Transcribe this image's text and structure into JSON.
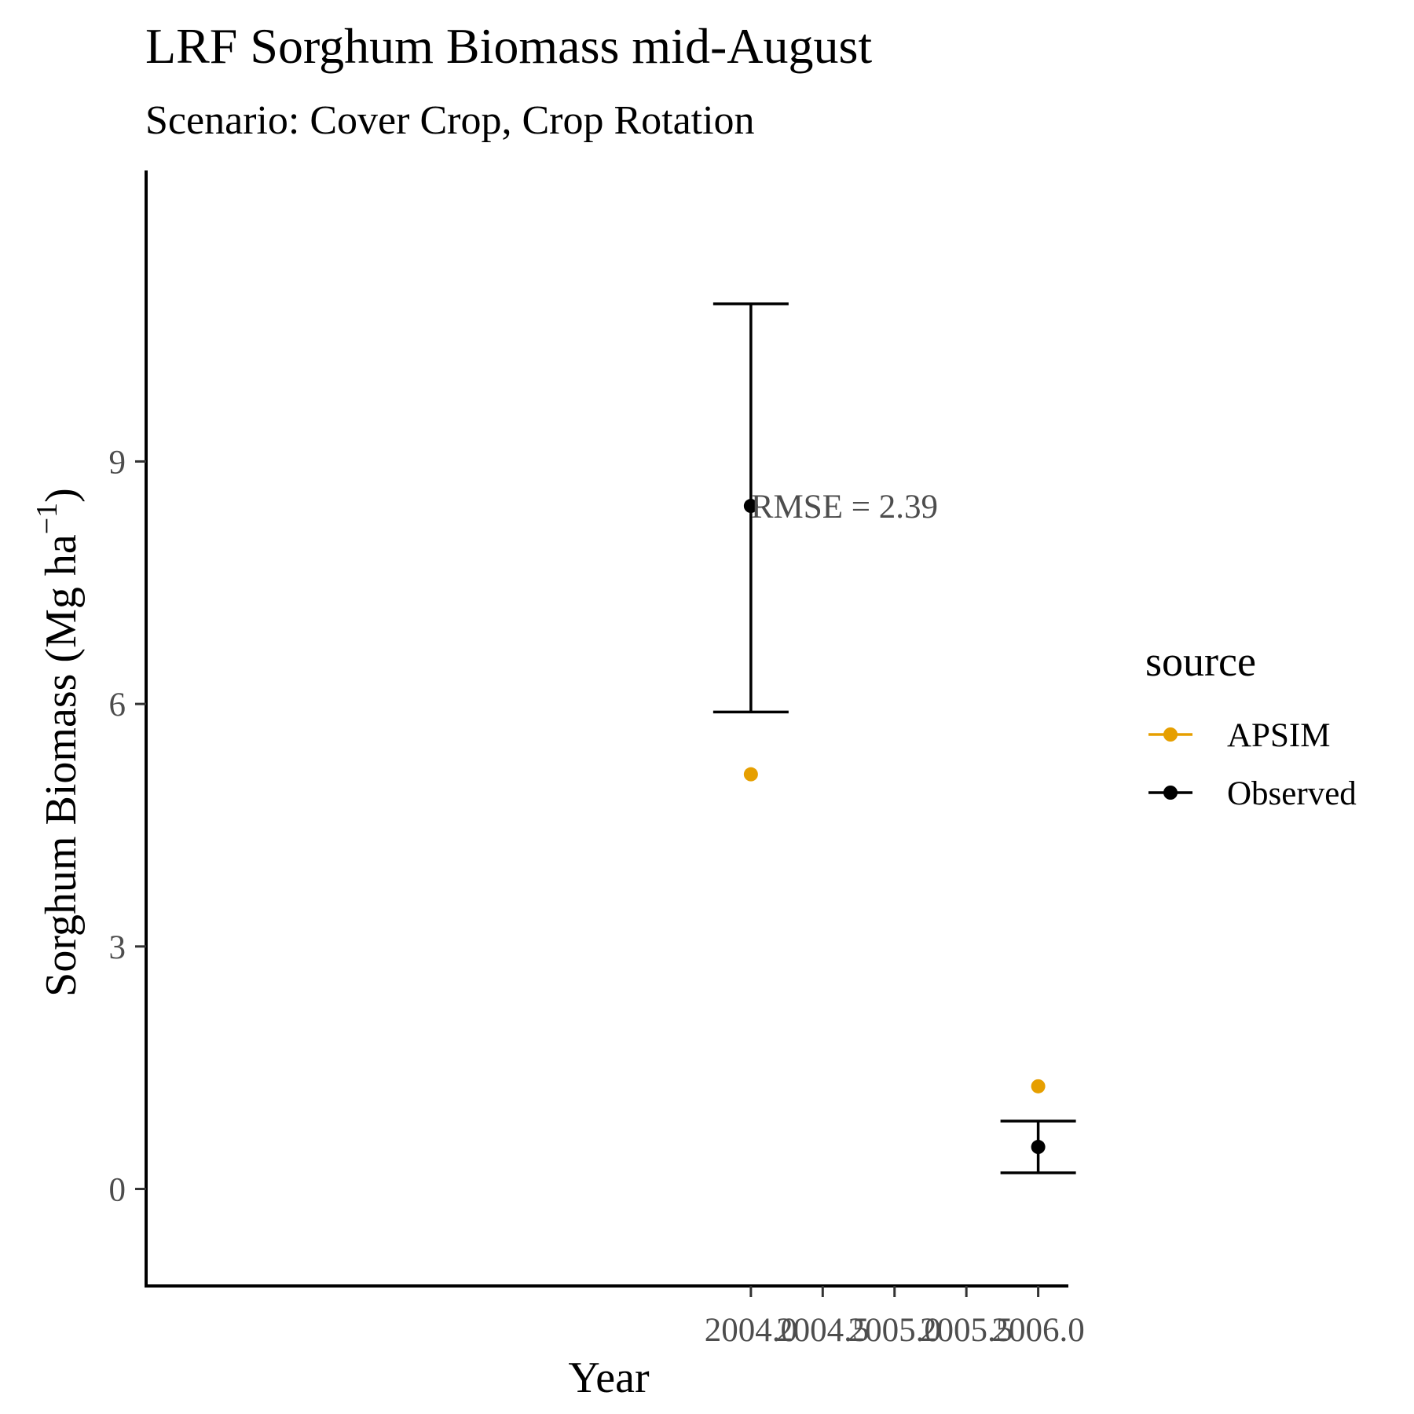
{
  "chart_data": {
    "type": "scatter",
    "title": "LRF Sorghum Biomass mid-August",
    "subtitle": "Scenario: Cover Crop, Crop Rotation",
    "xlabel": "Year",
    "ylabel_main": "Sorghum Biomass (Mg ha",
    "ylabel_superscript": "−1",
    "ylabel_close": ")",
    "xlim": [
      1999.79,
      2006.21
    ],
    "ylim": [
      -1.2,
      12.6
    ],
    "x_ticks": [
      2004.0,
      2004.5,
      2005.0,
      2005.5,
      2006.0
    ],
    "x_tick_labels": [
      "2004.0",
      "2004.5",
      "2005.0",
      "2005.5",
      "2006.0"
    ],
    "y_ticks": [
      0,
      3,
      6,
      9
    ],
    "y_tick_labels": [
      "0",
      "3",
      "6",
      "9"
    ],
    "grid": false,
    "legend": {
      "title": "source",
      "position": "right",
      "entries": [
        {
          "label": "APSIM",
          "color": "#E69F00"
        },
        {
          "label": "Observed",
          "color": "#000000"
        }
      ]
    },
    "series": [
      {
        "name": "APSIM",
        "color": "#E69F00",
        "points": [
          {
            "x": 2004.0,
            "y": 5.13
          },
          {
            "x": 2006.0,
            "y": 1.27
          }
        ]
      },
      {
        "name": "Observed",
        "color": "#000000",
        "points": [
          {
            "x": 2004.0,
            "y": 8.45,
            "ymin": 5.9,
            "ymax": 10.95
          },
          {
            "x": 2006.0,
            "y": 0.52,
            "ymin": 0.2,
            "ymax": 0.84
          }
        ]
      }
    ],
    "annotations": [
      {
        "text": "RMSE = 2.39",
        "x": 2004.0,
        "y": 8.45
      }
    ]
  }
}
